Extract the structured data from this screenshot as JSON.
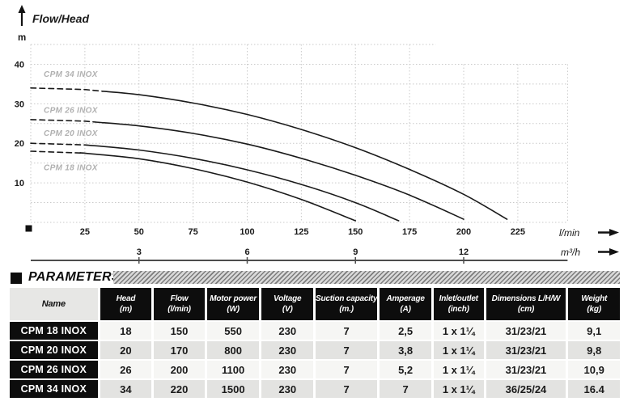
{
  "chart_data": {
    "type": "line",
    "title": "Flow/Head",
    "y_unit": "m",
    "x_unit_primary": "l/min",
    "x_unit_secondary": "m³/h",
    "xlim": [
      0,
      248
    ],
    "ylim": [
      0,
      45
    ],
    "x_ticks": [
      25,
      50,
      75,
      100,
      125,
      150,
      175,
      200,
      225
    ],
    "y_ticks": [
      10,
      20,
      30,
      40
    ],
    "secondary_ticks": [
      {
        "x": 50,
        "label": "3"
      },
      {
        "x": 100,
        "label": "6"
      },
      {
        "x": 150,
        "label": "9"
      },
      {
        "x": 200,
        "label": "12"
      }
    ],
    "grid": {
      "x_step": 25,
      "y_step": 5,
      "full_y": 40,
      "ext_y": 45,
      "ext_x_until": 187
    },
    "series": [
      {
        "name": "CPM 34 INOX",
        "dash_until": 33,
        "label_pos": [
          6,
          36.8
        ],
        "points": [
          [
            0,
            34
          ],
          [
            25,
            33.6
          ],
          [
            50,
            32.3
          ],
          [
            75,
            30.2
          ],
          [
            100,
            27.3
          ],
          [
            125,
            23.5
          ],
          [
            150,
            18.9
          ],
          [
            175,
            13.4
          ],
          [
            200,
            7.1
          ],
          [
            220,
            0.8
          ]
        ]
      },
      {
        "name": "CPM 26 INOX",
        "dash_until": 30,
        "label_pos": [
          6,
          27.7
        ],
        "points": [
          [
            0,
            26
          ],
          [
            25,
            25.6
          ],
          [
            50,
            24.4
          ],
          [
            75,
            22.5
          ],
          [
            100,
            19.8
          ],
          [
            125,
            16.2
          ],
          [
            150,
            11.9
          ],
          [
            175,
            6.9
          ],
          [
            200,
            0.8
          ]
        ]
      },
      {
        "name": "CPM 20 INOX",
        "dash_until": 26,
        "label_pos": [
          6,
          21.9
        ],
        "points": [
          [
            0,
            20
          ],
          [
            25,
            19.6
          ],
          [
            50,
            18.3
          ],
          [
            75,
            16.2
          ],
          [
            100,
            13.3
          ],
          [
            125,
            9.6
          ],
          [
            150,
            5.0
          ],
          [
            170,
            0.4
          ]
        ]
      },
      {
        "name": "CPM 18 INOX",
        "dash_until": 24,
        "label_pos": [
          6,
          13.2
        ],
        "points": [
          [
            0,
            18
          ],
          [
            25,
            17.5
          ],
          [
            50,
            16.1
          ],
          [
            75,
            13.6
          ],
          [
            100,
            10.2
          ],
          [
            125,
            5.8
          ],
          [
            150,
            0.4
          ]
        ]
      }
    ],
    "colors": {
      "curve": "#1a1a1a",
      "grid": "#c9c9c9",
      "curve_label": "#b1b1b1",
      "axis_text": "#1a1a1a",
      "secondary_axis": "#4d4d4d"
    }
  },
  "parameters_table": {
    "title": "PARAMETERS",
    "columns": [
      {
        "label": "Name",
        "sub": ""
      },
      {
        "label": "Head",
        "sub": "(m)"
      },
      {
        "label": "Flow",
        "sub": "(l/min)"
      },
      {
        "label": "Motor power",
        "sub": "(W)"
      },
      {
        "label": "Voltage",
        "sub": "(V)"
      },
      {
        "label": "Suction capacity",
        "sub": "(m.)"
      },
      {
        "label": "Amperage",
        "sub": "(A)"
      },
      {
        "label": "Inlet/outlet",
        "sub": "(inch)"
      },
      {
        "label": "Dimensions L/H/W",
        "sub": "(cm)"
      },
      {
        "label": "Weight",
        "sub": "(kg)"
      }
    ],
    "rows": [
      {
        "name": "CPM 18 INOX",
        "values": [
          "18",
          "150",
          "550",
          "230",
          "7",
          "2,5",
          "1 x 1¼",
          "31/23/21",
          "9,1"
        ]
      },
      {
        "name": "CPM 20 INOX",
        "values": [
          "20",
          "170",
          "800",
          "230",
          "7",
          "3,8",
          "1 x 1¼",
          "31/23/21",
          "9,8"
        ]
      },
      {
        "name": "CPM 26 INOX",
        "values": [
          "26",
          "200",
          "1100",
          "230",
          "7",
          "5,2",
          "1 x 1¼",
          "31/23/21",
          "10,9"
        ]
      },
      {
        "name": "CPM 34 INOX",
        "values": [
          "34",
          "220",
          "1500",
          "230",
          "7",
          "7",
          "1 x 1¼",
          "36/25/24",
          "16.4"
        ]
      }
    ]
  }
}
